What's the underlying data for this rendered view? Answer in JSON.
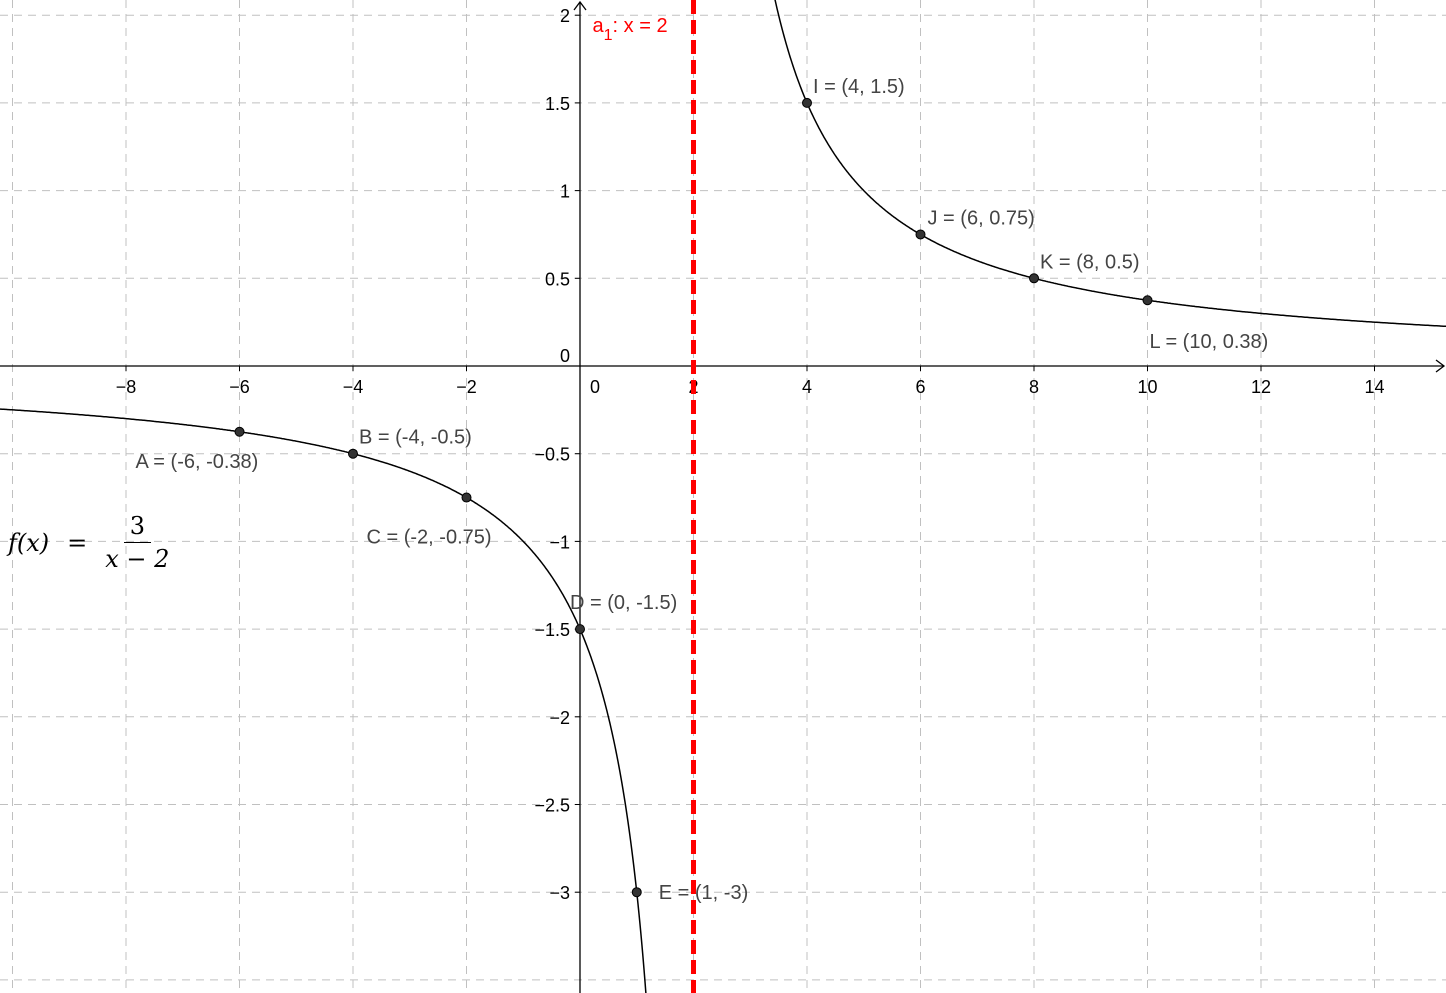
{
  "chart_data": {
    "type": "line",
    "function": {
      "label_lhs": "f(x)",
      "label_eq": "=",
      "numerator": "3",
      "denominator": "x − 2",
      "color": "#000000"
    },
    "asymptote": {
      "name": "a",
      "subscript": "1",
      "equation": ": x = 2",
      "x": 2,
      "color": "#ff0000",
      "style": "dashed"
    },
    "points": [
      {
        "x": -6,
        "y": -0.375,
        "label": "A = (-6, -0.38)"
      },
      {
        "x": -4,
        "y": -0.5,
        "label": "B = (-4, -0.5)"
      },
      {
        "x": -2,
        "y": -0.75,
        "label": "C = (-2, -0.75)"
      },
      {
        "x": 0,
        "y": -1.5,
        "label": "D = (0, -1.5)"
      },
      {
        "x": 1,
        "y": -3,
        "label": "E = (1, -3)"
      },
      {
        "x": 4,
        "y": 1.5,
        "label": "I = (4, 1.5)"
      },
      {
        "x": 6,
        "y": 0.75,
        "label": "J = (6, 0.75)"
      },
      {
        "x": 8,
        "y": 0.5,
        "label": "K = (8, 0.5)"
      },
      {
        "x": 10,
        "y": 0.375,
        "label": "L = (10, 0.38)"
      }
    ],
    "xlim": [
      -10.2,
      15.2
    ],
    "ylim": [
      -3.55,
      2.08
    ],
    "x_ticks": [
      -8,
      -6,
      -4,
      -2,
      0,
      2,
      4,
      6,
      8,
      10,
      12,
      14
    ],
    "x_tick_labels": [
      "−8",
      "−6",
      "−4",
      "−2",
      "0",
      "2",
      "4",
      "6",
      "8",
      "10",
      "12",
      "14"
    ],
    "y_ticks": [
      -3,
      -2.5,
      -2,
      -1.5,
      -1,
      -0.5,
      0,
      0.5,
      1,
      1.5,
      2
    ],
    "y_tick_labels": [
      "−3",
      "−2.5",
      "−2",
      "−1.5",
      "−1",
      "−0.5",
      "0",
      "0.5",
      "1",
      "1.5",
      "2"
    ],
    "grid": true,
    "grid_color": "#c0c0c0",
    "point_color": "#333333"
  }
}
